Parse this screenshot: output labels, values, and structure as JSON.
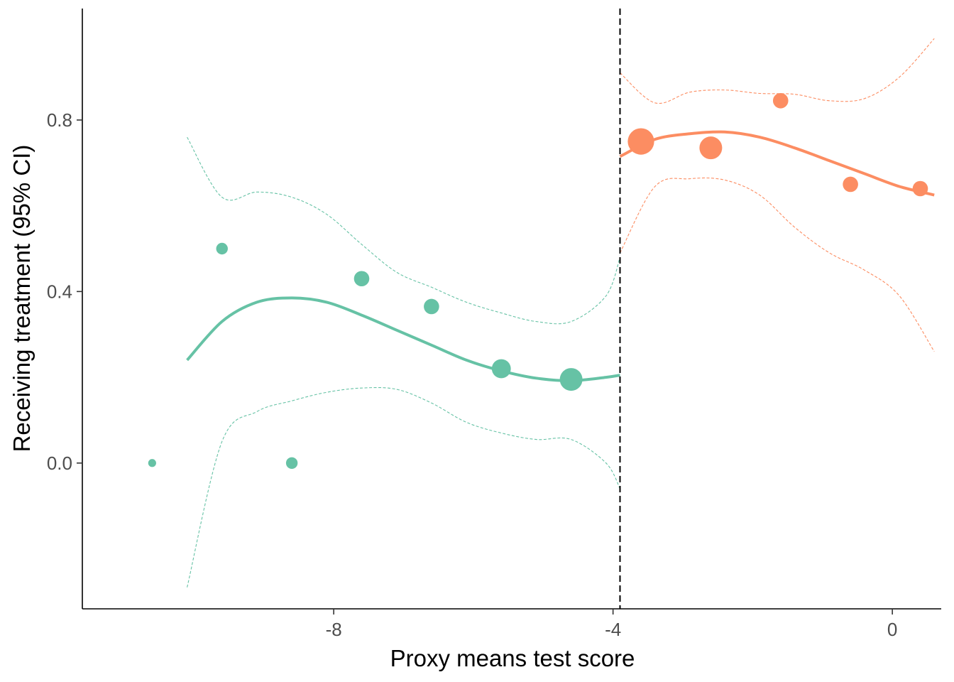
{
  "chart_data": {
    "type": "scatter",
    "xlabel": "Proxy means test score",
    "ylabel": "Receiving treatment (95% CI)",
    "xlim": [
      -11.6,
      0.7
    ],
    "ylim": [
      -0.34,
      1.06
    ],
    "x_ticks": [
      -8,
      -4,
      0
    ],
    "y_ticks": [
      0.0,
      0.4,
      0.8
    ],
    "x_tick_labels": [
      "-8",
      "-4",
      "0"
    ],
    "y_tick_labels": [
      "0.0",
      "0.4",
      "0.8"
    ],
    "cutoff": -3.9,
    "grid": false,
    "series": [
      {
        "color": "#66c2a5",
        "points": [
          {
            "x": -10.6,
            "y": 0.0,
            "size": 1
          },
          {
            "x": -9.6,
            "y": 0.5,
            "size": 2
          },
          {
            "x": -8.6,
            "y": 0.0,
            "size": 2
          },
          {
            "x": -7.6,
            "y": 0.43,
            "size": 3
          },
          {
            "x": -6.6,
            "y": 0.365,
            "size": 3
          },
          {
            "x": -5.6,
            "y": 0.22,
            "size": 4
          },
          {
            "x": -4.6,
            "y": 0.195,
            "size": 5
          }
        ],
        "fit": {
          "x": [
            -10.1,
            -9.6,
            -9.1,
            -8.6,
            -8.1,
            -7.6,
            -7.1,
            -6.6,
            -6.1,
            -5.6,
            -5.1,
            -4.6,
            -4.1,
            -3.9
          ],
          "y": [
            0.24,
            0.33,
            0.375,
            0.385,
            0.375,
            0.345,
            0.31,
            0.275,
            0.24,
            0.215,
            0.198,
            0.192,
            0.2,
            0.205
          ],
          "lower": [
            -0.29,
            0.05,
            0.12,
            0.145,
            0.165,
            0.175,
            0.172,
            0.14,
            0.095,
            0.07,
            0.055,
            0.055,
            0.0,
            -0.06
          ],
          "upper": [
            0.76,
            0.62,
            0.632,
            0.62,
            0.58,
            0.51,
            0.445,
            0.41,
            0.375,
            0.35,
            0.33,
            0.33,
            0.39,
            0.48
          ]
        }
      },
      {
        "color": "#fc8d62",
        "points": [
          {
            "x": -3.6,
            "y": 0.75,
            "size": 6
          },
          {
            "x": -2.6,
            "y": 0.735,
            "size": 5
          },
          {
            "x": -1.6,
            "y": 0.845,
            "size": 3
          },
          {
            "x": -0.6,
            "y": 0.65,
            "size": 3
          },
          {
            "x": 0.4,
            "y": 0.64,
            "size": 3
          }
        ],
        "fit": {
          "x": [
            -3.9,
            -3.4,
            -2.9,
            -2.4,
            -1.9,
            -1.4,
            -0.9,
            -0.4,
            0.1,
            0.6
          ],
          "y": [
            0.715,
            0.755,
            0.768,
            0.772,
            0.76,
            0.735,
            0.705,
            0.675,
            0.645,
            0.625
          ],
          "lower": [
            0.49,
            0.645,
            0.663,
            0.66,
            0.625,
            0.55,
            0.49,
            0.45,
            0.39,
            0.26
          ],
          "upper": [
            0.91,
            0.84,
            0.865,
            0.87,
            0.862,
            0.86,
            0.845,
            0.85,
            0.9,
            0.99
          ]
        }
      }
    ]
  }
}
